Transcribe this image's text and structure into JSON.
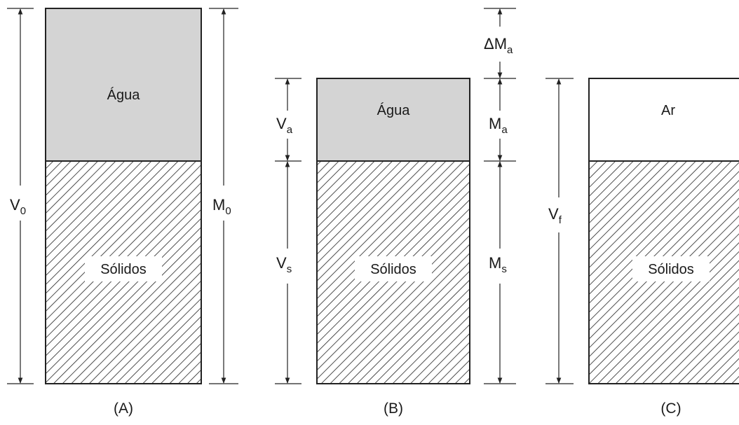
{
  "colors": {
    "water": "#d4d4d4",
    "hatch": "#222222",
    "outline": "#222222",
    "air": "#ffffff"
  },
  "panels": [
    {
      "caption": "(A)",
      "top_phase": "Água",
      "bottom_phase": "Sólidos"
    },
    {
      "caption": "(B)",
      "top_phase": "Água",
      "bottom_phase": "Sólidos"
    },
    {
      "caption": "(C)",
      "top_phase": "Ar",
      "bottom_phase": "Sólidos"
    }
  ],
  "dimensions": {
    "V0": {
      "main": "V",
      "sub": "0"
    },
    "M0": {
      "main": "M",
      "sub": "0"
    },
    "Va": {
      "main": "V",
      "sub": "a"
    },
    "Vs": {
      "main": "V",
      "sub": "s"
    },
    "dMa": {
      "main": "ΔM",
      "sub": "a"
    },
    "Ma": {
      "main": "M",
      "sub": "a"
    },
    "Ms": {
      "main": "M",
      "sub": "s"
    },
    "Vf": {
      "main": "V",
      "sub": "f"
    }
  }
}
